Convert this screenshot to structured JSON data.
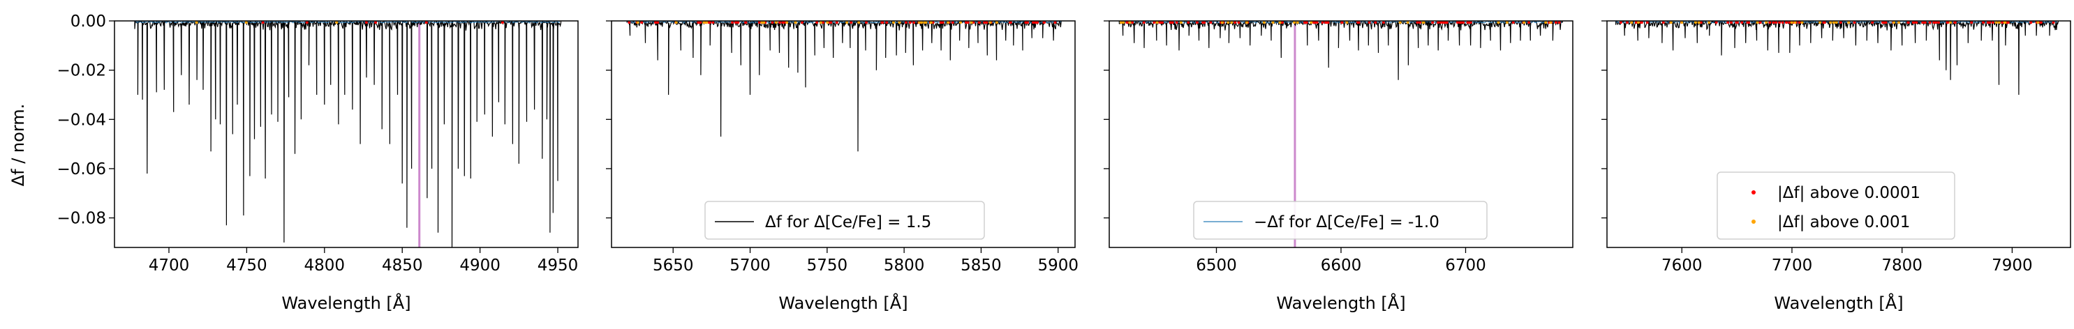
{
  "figure": {
    "ylabel": "Δf / norm.",
    "xlabel": "Wavelength [Å]"
  },
  "legend_entries": {
    "black_line": "Δf for Δ[Ce/Fe] = 1.5",
    "blue_line": "−Δf for Δ[Ce/Fe] = -1.0",
    "red_dots": "|Δf| above 0.0001",
    "orange_dots": "|Δf| above 0.001"
  },
  "colors": {
    "black_line": "#000000",
    "blue_line": "#1f77b4",
    "red_dots": "#ff0000",
    "orange_dots": "#ffa500",
    "marker_line": "#cc88cc"
  },
  "chart_data": [
    {
      "type": "line",
      "panel": 1,
      "xlabel": "Wavelength [Å]",
      "ylabel": "Δf / norm.",
      "xlim": [
        4665,
        4963
      ],
      "ylim": [
        -0.092,
        0.0
      ],
      "xticks": [
        4700,
        4750,
        4800,
        4850,
        4900,
        4950
      ],
      "yticks": [
        0.0,
        -0.02,
        -0.04,
        -0.06,
        -0.08
      ],
      "ytick_labels": [
        "0.00",
        "−0.02",
        "−0.04",
        "−0.06",
        "−0.08"
      ],
      "data_range": [
        4678,
        4952
      ],
      "vline": 4861,
      "legend": null,
      "lines": [
        [
          4680,
          -0.03
        ],
        [
          4683,
          -0.032
        ],
        [
          4686,
          -0.062
        ],
        [
          4692,
          -0.029
        ],
        [
          4697,
          -0.028
        ],
        [
          4703,
          -0.037
        ],
        [
          4708,
          -0.022
        ],
        [
          4713,
          -0.034
        ],
        [
          4718,
          -0.024
        ],
        [
          4722,
          -0.028
        ],
        [
          4727,
          -0.053
        ],
        [
          4730,
          -0.04
        ],
        [
          4733,
          -0.042
        ],
        [
          4737,
          -0.083
        ],
        [
          4741,
          -0.046
        ],
        [
          4744,
          -0.034
        ],
        [
          4748,
          -0.079
        ],
        [
          4752,
          -0.063
        ],
        [
          4755,
          -0.048
        ],
        [
          4759,
          -0.043
        ],
        [
          4762,
          -0.064
        ],
        [
          4766,
          -0.038
        ],
        [
          4770,
          -0.041
        ],
        [
          4774,
          -0.09
        ],
        [
          4777,
          -0.031
        ],
        [
          4781,
          -0.054
        ],
        [
          4785,
          -0.04
        ],
        [
          4790,
          -0.018
        ],
        [
          4795,
          -0.03
        ],
        [
          4800,
          -0.034
        ],
        [
          4804,
          -0.026
        ],
        [
          4809,
          -0.042
        ],
        [
          4813,
          -0.03
        ],
        [
          4818,
          -0.036
        ],
        [
          4823,
          -0.05
        ],
        [
          4827,
          -0.023
        ],
        [
          4832,
          -0.026
        ],
        [
          4837,
          -0.044
        ],
        [
          4842,
          -0.05
        ],
        [
          4847,
          -0.03
        ],
        [
          4850,
          -0.066
        ],
        [
          4853,
          -0.084
        ],
        [
          4856,
          -0.06
        ],
        [
          4866,
          -0.072
        ],
        [
          4869,
          -0.06
        ],
        [
          4873,
          -0.086
        ],
        [
          4877,
          -0.042
        ],
        [
          4882,
          -0.098
        ],
        [
          4886,
          -0.06
        ],
        [
          4890,
          -0.063
        ],
        [
          4894,
          -0.064
        ],
        [
          4898,
          -0.041
        ],
        [
          4903,
          -0.038
        ],
        [
          4908,
          -0.047
        ],
        [
          4912,
          -0.033
        ],
        [
          4916,
          -0.042
        ],
        [
          4921,
          -0.05
        ],
        [
          4925,
          -0.058
        ],
        [
          4930,
          -0.041
        ],
        [
          4935,
          -0.036
        ],
        [
          4940,
          -0.056
        ],
        [
          4943,
          -0.04
        ],
        [
          4945,
          -0.086
        ],
        [
          4947,
          -0.078
        ],
        [
          4950,
          -0.065
        ]
      ]
    },
    {
      "type": "line",
      "panel": 2,
      "xlabel": "Wavelength [Å]",
      "xlim": [
        5610,
        5911
      ],
      "ylim": [
        -0.092,
        0.0
      ],
      "xticks": [
        5650,
        5700,
        5750,
        5800,
        5850,
        5900
      ],
      "data_range": [
        5620,
        5902
      ],
      "vline": null,
      "legend": [
        "black_line"
      ],
      "lines": [
        [
          5622,
          -0.006
        ],
        [
          5632,
          -0.009
        ],
        [
          5640,
          -0.016
        ],
        [
          5647,
          -0.03
        ],
        [
          5655,
          -0.012
        ],
        [
          5663,
          -0.015
        ],
        [
          5668,
          -0.022
        ],
        [
          5674,
          -0.01
        ],
        [
          5681,
          -0.047
        ],
        [
          5688,
          -0.013
        ],
        [
          5694,
          -0.018
        ],
        [
          5700,
          -0.03
        ],
        [
          5706,
          -0.022
        ],
        [
          5713,
          -0.012
        ],
        [
          5719,
          -0.013
        ],
        [
          5725,
          -0.019
        ],
        [
          5731,
          -0.021
        ],
        [
          5736,
          -0.027
        ],
        [
          5742,
          -0.014
        ],
        [
          5748,
          -0.011
        ],
        [
          5754,
          -0.015
        ],
        [
          5760,
          -0.009
        ],
        [
          5765,
          -0.011
        ],
        [
          5770,
          -0.053
        ],
        [
          5775,
          -0.012
        ],
        [
          5782,
          -0.02
        ],
        [
          5788,
          -0.015
        ],
        [
          5795,
          -0.014
        ],
        [
          5801,
          -0.013
        ],
        [
          5806,
          -0.018
        ],
        [
          5812,
          -0.012
        ],
        [
          5818,
          -0.009
        ],
        [
          5824,
          -0.012
        ],
        [
          5830,
          -0.016
        ],
        [
          5836,
          -0.008
        ],
        [
          5842,
          -0.011
        ],
        [
          5848,
          -0.009
        ],
        [
          5854,
          -0.014
        ],
        [
          5860,
          -0.016
        ],
        [
          5866,
          -0.008
        ],
        [
          5871,
          -0.01
        ],
        [
          5877,
          -0.012
        ],
        [
          5883,
          -0.007
        ],
        [
          5890,
          -0.007
        ],
        [
          5897,
          -0.008
        ]
      ]
    },
    {
      "type": "line",
      "panel": 3,
      "xlabel": "Wavelength [Å]",
      "xlim": [
        6414,
        6786
      ],
      "ylim": [
        -0.092,
        0.0
      ],
      "xticks": [
        6500,
        6600,
        6700
      ],
      "data_range": [
        6422,
        6778
      ],
      "vline": 6563,
      "legend": [
        "blue_line"
      ],
      "lines": [
        [
          6425,
          -0.006
        ],
        [
          6434,
          -0.009
        ],
        [
          6442,
          -0.011
        ],
        [
          6452,
          -0.008
        ],
        [
          6460,
          -0.01
        ],
        [
          6470,
          -0.012
        ],
        [
          6478,
          -0.006
        ],
        [
          6486,
          -0.008
        ],
        [
          6494,
          -0.011
        ],
        [
          6503,
          -0.007
        ],
        [
          6510,
          -0.009
        ],
        [
          6519,
          -0.007
        ],
        [
          6527,
          -0.01
        ],
        [
          6536,
          -0.006
        ],
        [
          6544,
          -0.008
        ],
        [
          6552,
          -0.015
        ],
        [
          6573,
          -0.01
        ],
        [
          6582,
          -0.008
        ],
        [
          6590,
          -0.019
        ],
        [
          6598,
          -0.011
        ],
        [
          6607,
          -0.008
        ],
        [
          6614,
          -0.012
        ],
        [
          6622,
          -0.01
        ],
        [
          6630,
          -0.013
        ],
        [
          6638,
          -0.01
        ],
        [
          6646,
          -0.024
        ],
        [
          6654,
          -0.018
        ],
        [
          6662,
          -0.011
        ],
        [
          6670,
          -0.01
        ],
        [
          6678,
          -0.012
        ],
        [
          6686,
          -0.008
        ],
        [
          6695,
          -0.01
        ],
        [
          6704,
          -0.01
        ],
        [
          6712,
          -0.011
        ],
        [
          6720,
          -0.008
        ],
        [
          6728,
          -0.012
        ],
        [
          6736,
          -0.009
        ],
        [
          6744,
          -0.008
        ],
        [
          6752,
          -0.008
        ],
        [
          6760,
          -0.006
        ],
        [
          6770,
          -0.008
        ]
      ]
    },
    {
      "type": "line",
      "panel": 4,
      "xlabel": "Wavelength [Å]",
      "xlim": [
        7532,
        7953
      ],
      "ylim": [
        -0.092,
        0.0
      ],
      "xticks": [
        7600,
        7700,
        7800,
        7900
      ],
      "data_range": [
        7540,
        7942
      ],
      "vline": null,
      "legend": [
        "red_dots",
        "orange_dots"
      ],
      "lines": [
        [
          7548,
          -0.006
        ],
        [
          7560,
          -0.008
        ],
        [
          7570,
          -0.007
        ],
        [
          7582,
          -0.009
        ],
        [
          7592,
          -0.012
        ],
        [
          7603,
          -0.007
        ],
        [
          7614,
          -0.009
        ],
        [
          7625,
          -0.006
        ],
        [
          7636,
          -0.014
        ],
        [
          7648,
          -0.011
        ],
        [
          7658,
          -0.009
        ],
        [
          7668,
          -0.008
        ],
        [
          7678,
          -0.012
        ],
        [
          7688,
          -0.013
        ],
        [
          7698,
          -0.013
        ],
        [
          7707,
          -0.01
        ],
        [
          7717,
          -0.009
        ],
        [
          7727,
          -0.007
        ],
        [
          7737,
          -0.008
        ],
        [
          7747,
          -0.007
        ],
        [
          7758,
          -0.01
        ],
        [
          7768,
          -0.008
        ],
        [
          7778,
          -0.009
        ],
        [
          7790,
          -0.012
        ],
        [
          7800,
          -0.01
        ],
        [
          7812,
          -0.009
        ],
        [
          7822,
          -0.008
        ],
        [
          7834,
          -0.016
        ],
        [
          7840,
          -0.02
        ],
        [
          7844,
          -0.024
        ],
        [
          7850,
          -0.018
        ],
        [
          7860,
          -0.009
        ],
        [
          7872,
          -0.008
        ],
        [
          7882,
          -0.008
        ],
        [
          7888,
          -0.026
        ],
        [
          7894,
          -0.01
        ],
        [
          7906,
          -0.03
        ],
        [
          7912,
          -0.006
        ],
        [
          7922,
          -0.006
        ],
        [
          7934,
          -0.006
        ]
      ]
    }
  ]
}
